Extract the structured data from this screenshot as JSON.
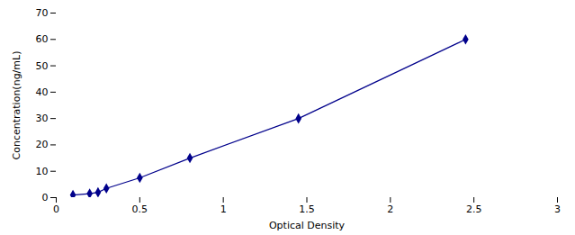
{
  "chart_data": {
    "type": "line",
    "x": [
      0.1,
      0.2,
      0.25,
      0.3,
      0.5,
      0.8,
      1.45,
      2.45
    ],
    "values": [
      1.0,
      1.5,
      2.0,
      3.5,
      7.5,
      15.0,
      30.0,
      60.0
    ],
    "color": "#00008B",
    "marker": "diamond",
    "xlabel": "Optical Density",
    "ylabel": "Concentration(ng/mL)",
    "xlim": [
      0,
      3
    ],
    "ylim": [
      0,
      70
    ],
    "xticks": [
      0,
      0.5,
      1,
      1.5,
      2,
      2.5,
      3
    ],
    "yticks": [
      0,
      10,
      20,
      30,
      40,
      50,
      60,
      70
    ],
    "grid": false
  }
}
